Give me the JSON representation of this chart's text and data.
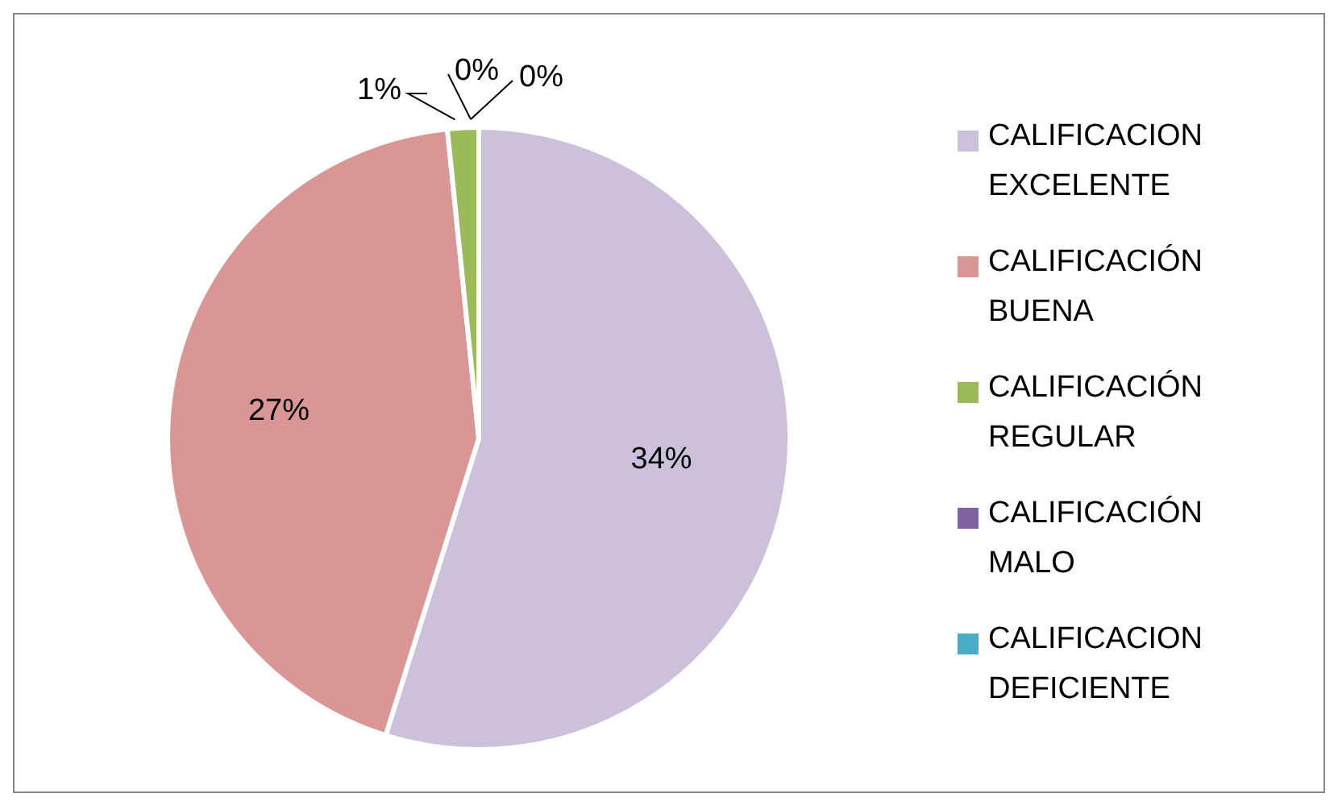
{
  "chart_data": {
    "type": "pie",
    "categories": [
      "CALIFICACION EXCELENTE",
      "CALIFICACIÓN BUENA",
      "CALIFICACIÓN REGULAR",
      "CALIFICACIÓN MALO",
      "CALIFICACION DEFICIENTE"
    ],
    "values": [
      34,
      27,
      1,
      0,
      0
    ],
    "colors": [
      "#ccc1da",
      "#d99694",
      "#9bbb59",
      "#8064a2",
      "#4bacc6"
    ],
    "value_labels": [
      "34%",
      "27%",
      "1%",
      "0%",
      "0%"
    ],
    "legend": "right"
  }
}
